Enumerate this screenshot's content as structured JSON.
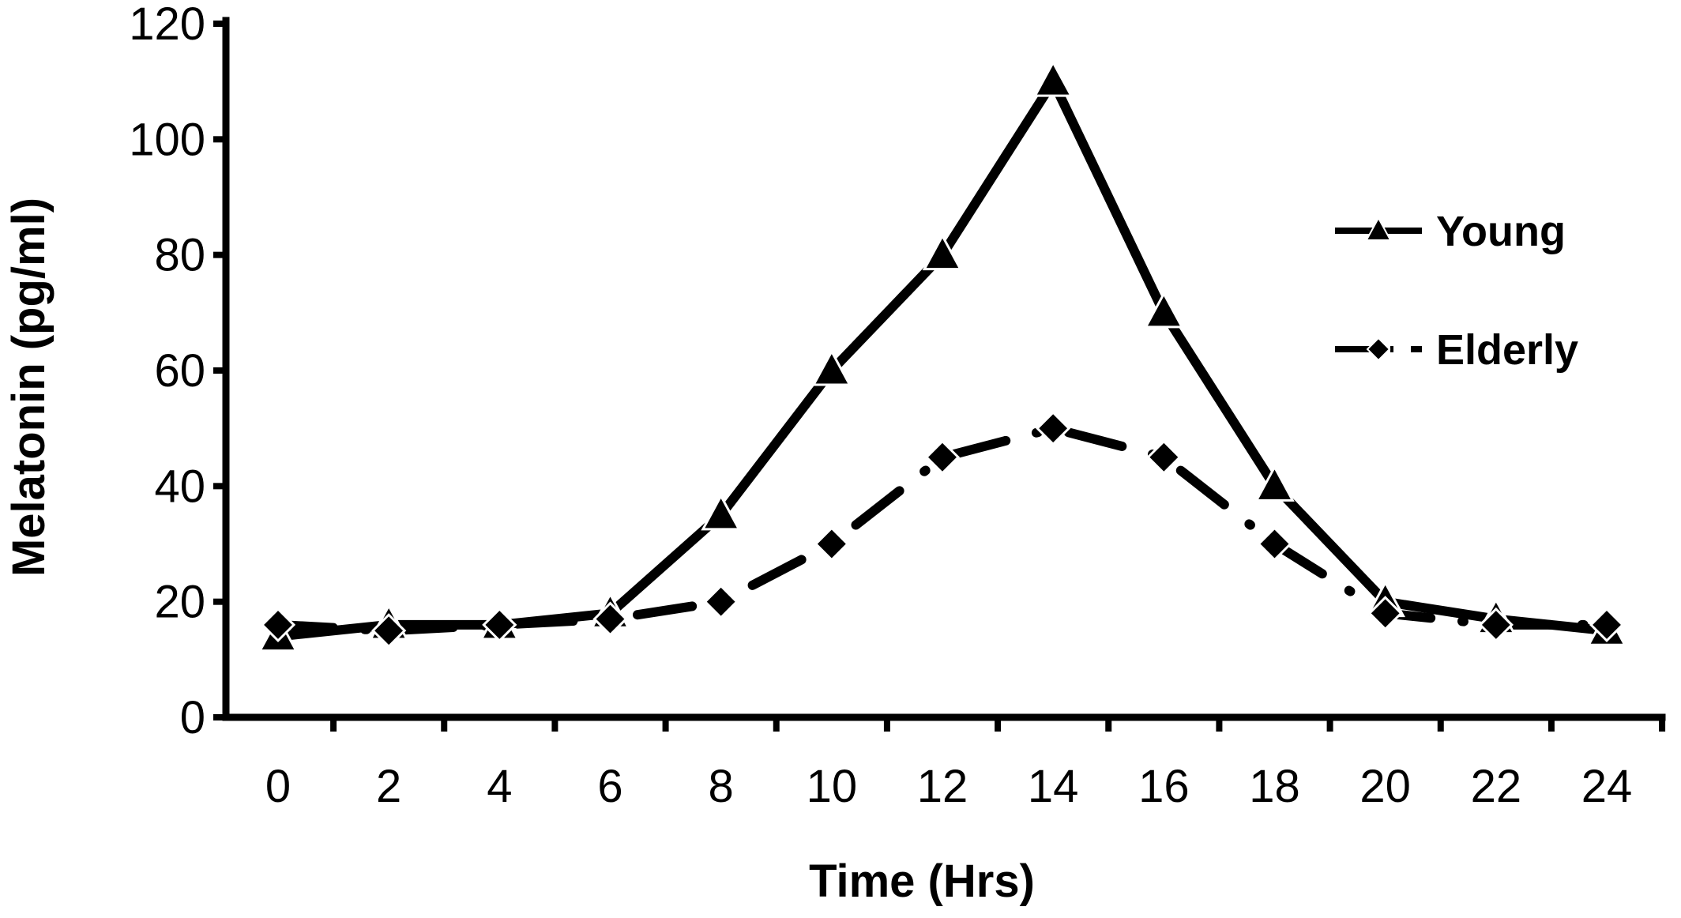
{
  "chart_data": {
    "type": "line",
    "title": "",
    "xlabel": "Time (Hrs)",
    "ylabel": "Melatonin (pg/ml)",
    "x": [
      0,
      2,
      4,
      6,
      8,
      10,
      12,
      14,
      16,
      18,
      20,
      22,
      24
    ],
    "x_tick_labels": [
      "0",
      "2",
      "4",
      "6",
      "8",
      "10",
      "12",
      "14",
      "16",
      "18",
      "20",
      "22",
      "24"
    ],
    "y_tick_labels": [
      "0",
      "20",
      "40",
      "60",
      "80",
      "100",
      "120"
    ],
    "xlim": [
      0,
      24
    ],
    "ylim": [
      0,
      120
    ],
    "grid": false,
    "legend_position": "right",
    "series": [
      {
        "name": "Young",
        "marker": "triangle",
        "line_style": "solid",
        "color": "#000000",
        "values": [
          14,
          16,
          16,
          18,
          35,
          60,
          80,
          110,
          70,
          40,
          20,
          17,
          15
        ]
      },
      {
        "name": "Elderly",
        "marker": "diamond",
        "line_style": "dash-dot",
        "color": "#000000",
        "values": [
          16,
          15,
          16,
          17,
          20,
          30,
          45,
          50,
          45,
          30,
          18,
          16,
          16
        ]
      }
    ]
  }
}
